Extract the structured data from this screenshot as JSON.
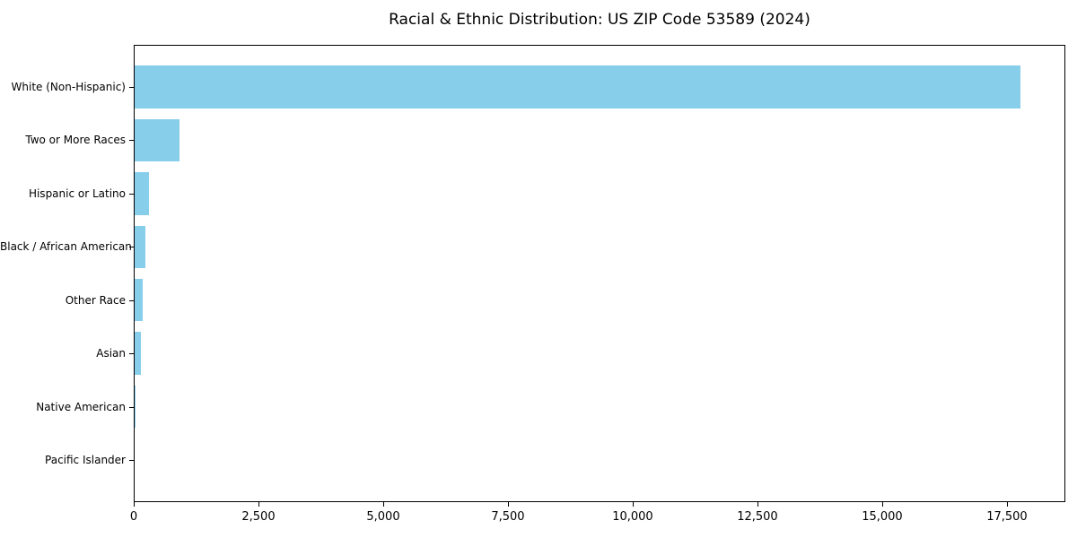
{
  "title": "Racial & Ethnic Distribution: US ZIP Code 53589 (2024)",
  "colors": {
    "bar": "#87CEEB",
    "axis": "#000000",
    "text": "#000000",
    "background": "#ffffff"
  },
  "chart_data": {
    "type": "bar",
    "orientation": "horizontal",
    "title": "Racial & Ethnic Distribution: US ZIP Code 53589 (2024)",
    "xlabel": "",
    "ylabel": "",
    "categories": [
      "White (Non-Hispanic)",
      "Two or More Races",
      "Hispanic or Latino",
      "Black / African American",
      "Other Race",
      "Asian",
      "Native American",
      "Pacific Islander"
    ],
    "values": [
      17750,
      900,
      290,
      215,
      155,
      130,
      20,
      0
    ],
    "xlim": [
      0,
      18670
    ],
    "xticks": [
      0,
      2500,
      5000,
      7500,
      10000,
      12500,
      15000,
      17500
    ],
    "xtick_labels": [
      "0",
      "2,500",
      "5,000",
      "7,500",
      "10,000",
      "12,500",
      "15,000",
      "17,500"
    ],
    "grid": false,
    "legend": null,
    "bar_color": "#87CEEB"
  }
}
